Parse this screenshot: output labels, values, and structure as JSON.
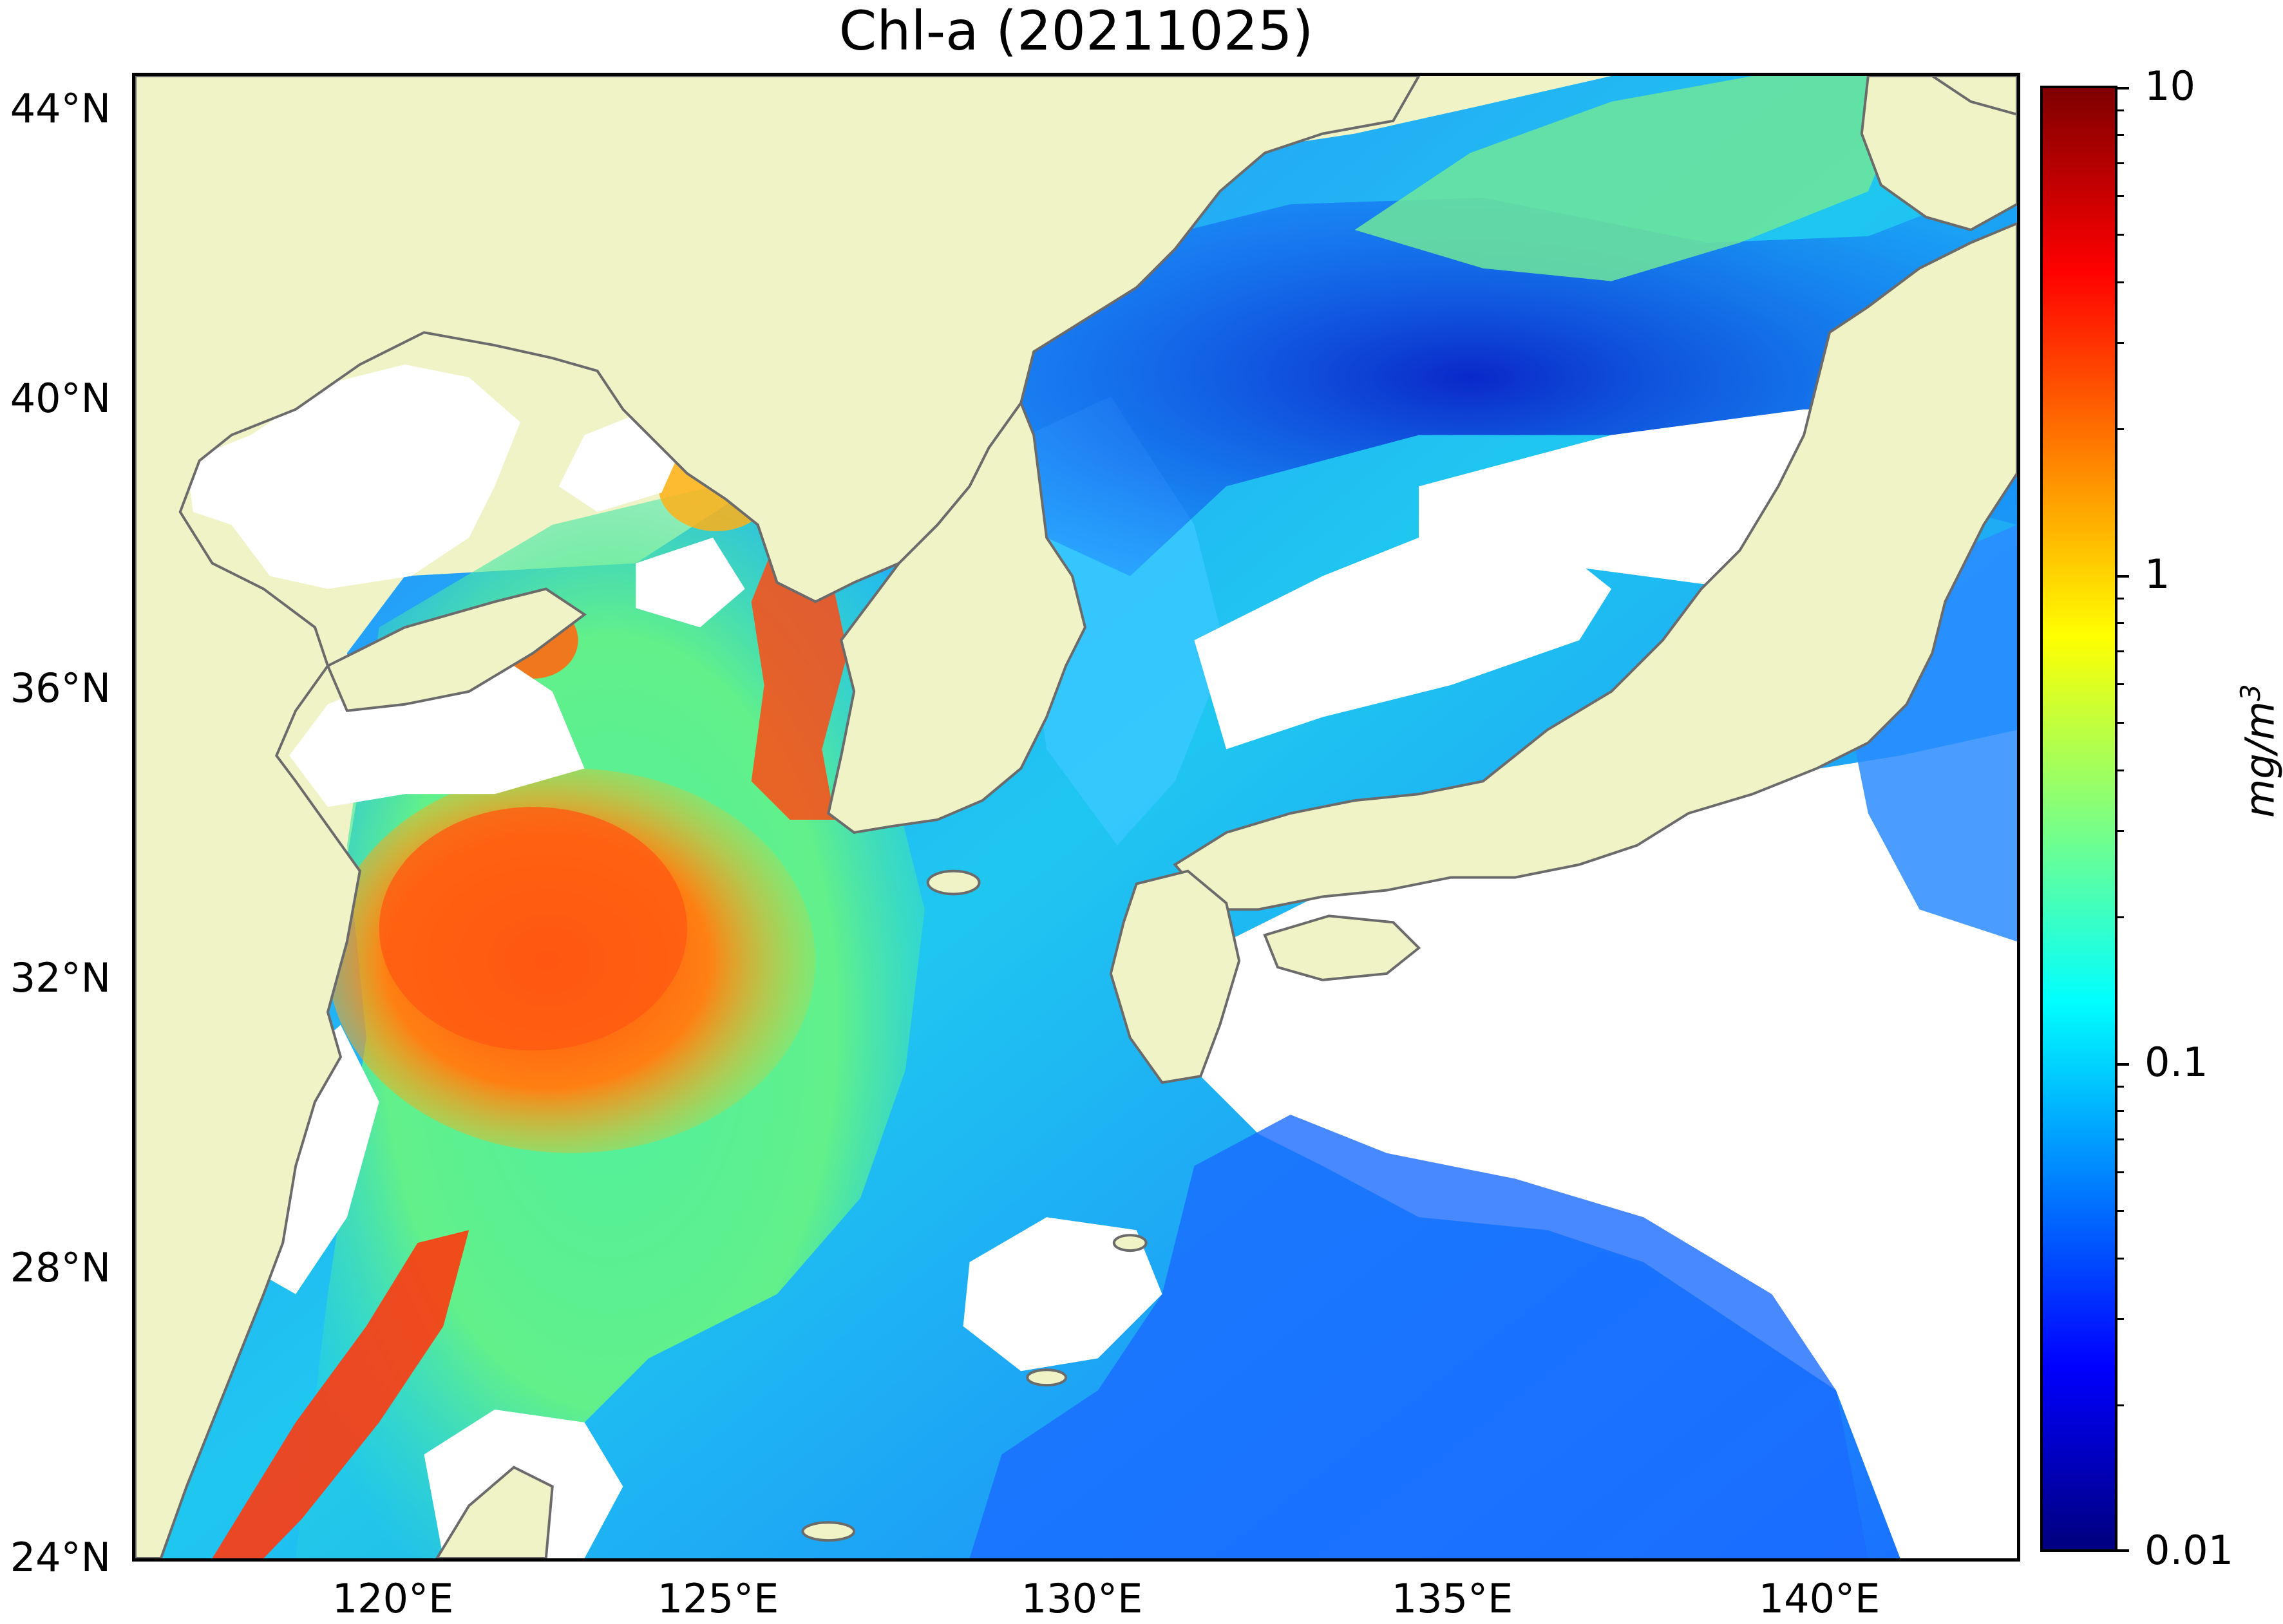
{
  "title": "Chl-a (20211025)",
  "lat_labels": [
    "44°N",
    "40°N",
    "36°N",
    "32°N",
    "28°N",
    "24°N"
  ],
  "lon_labels": [
    "120°E",
    "125°E",
    "130°E",
    "135°E",
    "140°E"
  ],
  "colorbar": {
    "ticks": [
      "10",
      "1",
      "0.1",
      "0.01"
    ],
    "unit_base": "mg/m",
    "unit_exp": "3",
    "scale": "log",
    "colormap": "jet"
  },
  "colors": {
    "land": "#eff3c6",
    "no_data": "#ffffff",
    "coastline": "#6b6b6b"
  }
}
